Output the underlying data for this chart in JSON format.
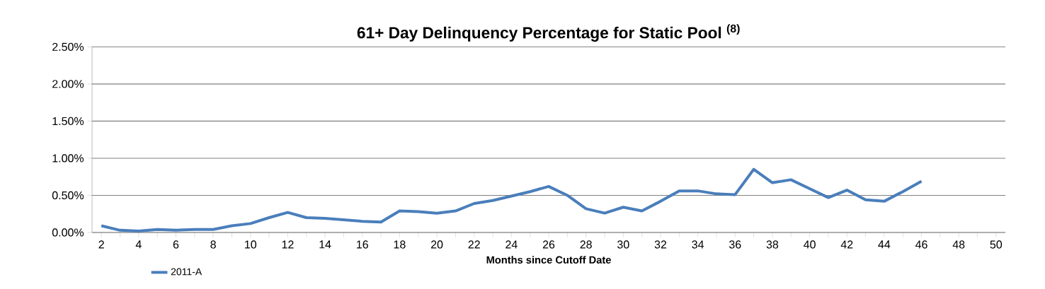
{
  "chart_data": {
    "type": "line",
    "title": "61+ Day Delinquency Percentage for Static Pool $^{(8)}$",
    "xlabel": "Months since Cutoff Date",
    "categories": [
      "2",
      null,
      "4",
      null,
      "6",
      null,
      "8",
      null,
      "10",
      null,
      "12",
      null,
      "14",
      null,
      "16",
      null,
      "18",
      null,
      "20",
      null,
      "22",
      null,
      "24",
      null,
      "26",
      null,
      "28",
      null,
      "30",
      null,
      "32",
      null,
      "34",
      null,
      "36",
      null,
      "38",
      null,
      "40",
      null,
      "42",
      null,
      "44",
      null,
      "46",
      null,
      "48",
      null,
      "50"
    ],
    "series": [
      {
        "name": "2011-A",
        "color": "#4a7ebb",
        "values": [
          0.09,
          0.03,
          0.02,
          0.04,
          0.03,
          0.04,
          0.04,
          0.09,
          0.12,
          0.2,
          0.27,
          0.2,
          0.19,
          0.17,
          0.15,
          0.14,
          0.29,
          0.28,
          0.26,
          0.29,
          0.39,
          0.43,
          0.49,
          0.55,
          0.62,
          0.5,
          0.32,
          0.26,
          0.34,
          0.29,
          0.42,
          0.56,
          0.56,
          0.52,
          0.51,
          0.85,
          0.67,
          0.71,
          0.59,
          0.47,
          0.57,
          0.44,
          0.42,
          0.55,
          0.69,
          null,
          null,
          null,
          null
        ]
      }
    ],
    "ylim": [
      0,
      2.5
    ],
    "yticks": [
      {
        "value": 0,
        "label": "0.00%"
      },
      {
        "value": 0.5,
        "label": "0.50%"
      },
      {
        "value": 1,
        "label": "1.00%"
      },
      {
        "value": 1.5,
        "label": "1.50%"
      },
      {
        "value": 2,
        "label": "2.00%"
      },
      {
        "value": 2.5,
        "label": "2.50%"
      }
    ],
    "grid": "y",
    "legend": "bottom left",
    "marker": "none",
    "line_style": "solid"
  }
}
